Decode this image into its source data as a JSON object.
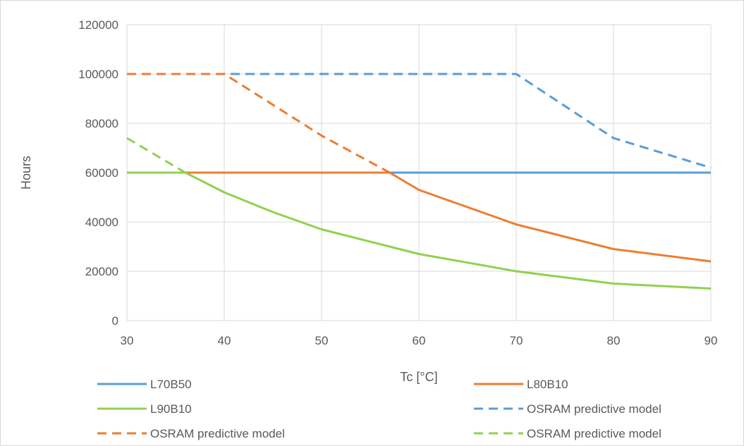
{
  "chart_data": {
    "type": "line",
    "title": "",
    "xlabel": "Tc [°C]",
    "ylabel": "Hours",
    "xlim": [
      30,
      90
    ],
    "ylim": [
      0,
      120000
    ],
    "x_ticks": [
      "30",
      "40",
      "50",
      "60",
      "70",
      "80",
      "90"
    ],
    "y_ticks": [
      "0",
      "20000",
      "40000",
      "60000",
      "80000",
      "100000",
      "120000"
    ],
    "grid": "on",
    "legend_position": "bottom",
    "series": [
      {
        "name": "L70B50",
        "color": "#5b9bd5",
        "style": "solid",
        "x": [
          30,
          40,
          50,
          60,
          70,
          80,
          90
        ],
        "values": [
          60000,
          60000,
          60000,
          60000,
          60000,
          60000,
          60000
        ]
      },
      {
        "name": "L80B10",
        "color": "#ed7d31",
        "style": "solid",
        "x": [
          30,
          40,
          50,
          57,
          60,
          70,
          80,
          90
        ],
        "values": [
          60000,
          60000,
          60000,
          60000,
          53000,
          39000,
          29000,
          24000
        ]
      },
      {
        "name": "L90B10",
        "color": "#92d050",
        "style": "solid",
        "x": [
          30,
          36,
          40,
          45,
          50,
          60,
          70,
          80,
          90
        ],
        "values": [
          60000,
          60000,
          52000,
          44000,
          37000,
          27000,
          20000,
          15000,
          13000
        ]
      },
      {
        "name": "OSRAM predictive model",
        "color": "#5b9bd5",
        "style": "dashed",
        "x": [
          30,
          40,
          50,
          60,
          70,
          80,
          90
        ],
        "values": [
          100000,
          100000,
          100000,
          100000,
          100000,
          74000,
          62000
        ]
      },
      {
        "name": "OSRAM predictive model",
        "color": "#ed7d31",
        "style": "dashed",
        "x": [
          30,
          40,
          50,
          57
        ],
        "values": [
          100000,
          100000,
          75000,
          60000
        ]
      },
      {
        "name": "OSRAM predictive model",
        "color": "#92d050",
        "style": "dashed",
        "x": [
          30,
          36
        ],
        "values": [
          74000,
          60000
        ]
      }
    ]
  }
}
